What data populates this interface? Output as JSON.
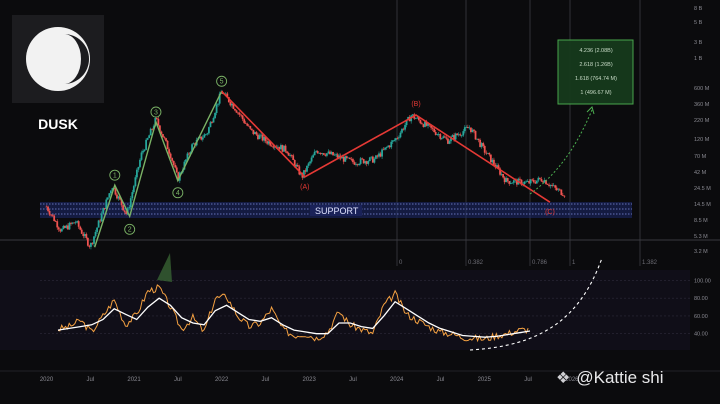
{
  "brand": {
    "name": "DUSK",
    "watermark": "@Kattie shi",
    "colors": {
      "background": "#0b0b0d",
      "candle_up": "#26a69a",
      "candle_down": "#ef5350",
      "impulse_wave": "#7bb366",
      "correction_wave": "#e53935",
      "fib_box": "#4caf50",
      "support_band": "#1e2a6e",
      "rsi_line": "#f5a142",
      "rsi_ma": "#ffffff"
    }
  },
  "chart_data": [
    {
      "type": "line",
      "role": "price-candlestick",
      "x_ticks": [
        "2020",
        "Jul",
        "2021",
        "Jul",
        "2022",
        "Jul",
        "2023",
        "Jul",
        "2024",
        "Jul",
        "2025",
        "Jul",
        "2026"
      ],
      "right_axis_labels": [
        "8 B",
        "5 B",
        "3 B",
        "1 B",
        "600 M",
        "360 M",
        "220 M",
        "120 M",
        "70 M",
        "42 M",
        "24.5 M",
        "14.5 M",
        "8.5 M",
        "5.3 M",
        "3.2 M"
      ],
      "wave_labels": {
        "impulse": [
          "1",
          "2",
          "3",
          "4",
          "5"
        ],
        "correction": [
          "(A)",
          "(B)",
          "(C)"
        ]
      },
      "support_label": "SUPPORT",
      "fib_targets": [
        "4.236 (2.08B)",
        "2.618 (1.26B)",
        "1.618 (764.74 M)",
        "1 (496.67 M)"
      ],
      "fib_time_labels": [
        "0",
        "0.382",
        "0.786",
        "1",
        "1.382"
      ],
      "price_series": [
        {
          "date": "2020-01",
          "v": 13
        },
        {
          "date": "2020-03",
          "v": 6
        },
        {
          "date": "2020-05",
          "v": 8
        },
        {
          "date": "2020-07",
          "v": 3.6
        },
        {
          "date": "2020-10",
          "v": 26
        },
        {
          "date": "2020-12",
          "v": 10
        },
        {
          "date": "2021-02",
          "v": 70
        },
        {
          "date": "2021-04",
          "v": 220
        },
        {
          "date": "2021-06",
          "v": 70
        },
        {
          "date": "2021-07",
          "v": 32
        },
        {
          "date": "2021-09",
          "v": 95
        },
        {
          "date": "2021-11",
          "v": 140
        },
        {
          "date": "2022-01",
          "v": 540
        },
        {
          "date": "2022-03",
          "v": 300
        },
        {
          "date": "2022-05",
          "v": 150
        },
        {
          "date": "2022-07",
          "v": 110
        },
        {
          "date": "2022-10",
          "v": 80
        },
        {
          "date": "2022-12",
          "v": 34
        },
        {
          "date": "2023-02",
          "v": 80
        },
        {
          "date": "2023-04",
          "v": 70
        },
        {
          "date": "2023-07",
          "v": 55
        },
        {
          "date": "2023-10",
          "v": 60
        },
        {
          "date": "2024-01",
          "v": 120
        },
        {
          "date": "2024-03",
          "v": 250
        },
        {
          "date": "2024-05",
          "v": 180
        },
        {
          "date": "2024-08",
          "v": 110
        },
        {
          "date": "2024-11",
          "v": 170
        },
        {
          "date": "2025-01",
          "v": 80
        },
        {
          "date": "2025-04",
          "v": 30
        },
        {
          "date": "2025-07",
          "v": 28
        },
        {
          "date": "2025-09",
          "v": 32
        },
        {
          "date": "2025-11",
          "v": 22
        },
        {
          "date": "2025-12",
          "v": 20
        }
      ]
    },
    {
      "type": "line",
      "role": "rsi-oscillator",
      "right_axis_labels": [
        "100.00",
        "80.00",
        "60.00",
        "40.00"
      ],
      "ylim": [
        25,
        105
      ],
      "rsi": [
        45,
        48,
        55,
        42,
        60,
        78,
        50,
        62,
        88,
        92,
        70,
        45,
        58,
        42,
        80,
        82,
        60,
        48,
        52,
        68,
        45,
        38,
        40,
        35,
        42,
        65,
        50,
        45,
        40,
        72,
        85,
        62,
        55,
        48,
        42,
        40,
        36,
        35,
        34,
        38,
        40,
        44,
        45
      ],
      "rsi_ma": [
        44,
        46,
        48,
        50,
        56,
        68,
        62,
        56,
        70,
        80,
        72,
        58,
        52,
        50,
        66,
        72,
        64,
        56,
        54,
        58,
        50,
        44,
        42,
        40,
        40,
        52,
        52,
        48,
        46,
        60,
        76,
        68,
        60,
        52,
        46,
        42,
        38,
        37,
        36,
        37,
        39,
        41,
        43
      ]
    }
  ]
}
